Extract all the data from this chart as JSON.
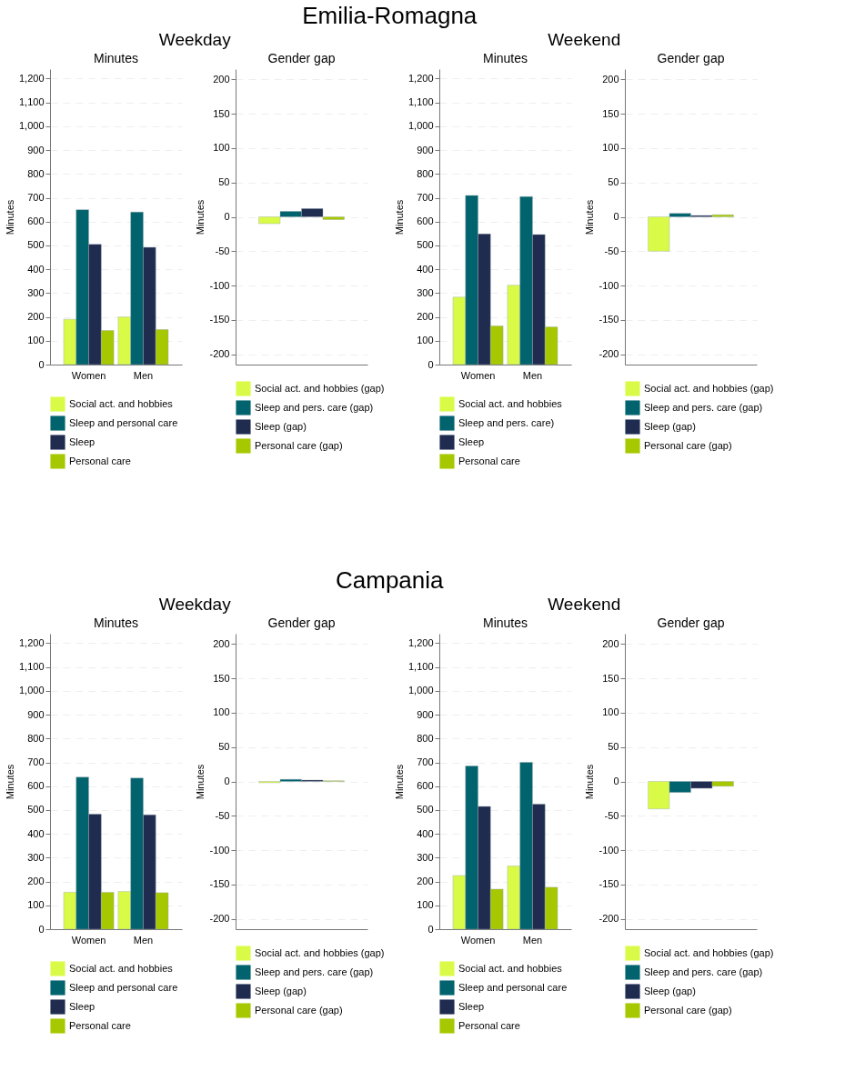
{
  "chart_data": [
    {
      "type": "bar",
      "title": "Minutes",
      "ylabel": "Minutes",
      "annotations": [
        "Emilia-Romagna",
        "Weekday"
      ],
      "categories": [
        "Women",
        "Men"
      ],
      "ylim": [
        0,
        1240
      ],
      "yticks": [
        0,
        100,
        200,
        300,
        400,
        500,
        600,
        700,
        800,
        900,
        {
          "value": 1000,
          "label": "1,000"
        },
        {
          "value": 1100,
          "label": "1,100"
        },
        {
          "value": 1200,
          "label": "1,200"
        }
      ],
      "grid": "y",
      "legend": "bottom",
      "series": [
        {
          "name": "Social act. and hobbies",
          "color": "#d9fb48",
          "values": [
            190,
            200
          ]
        },
        {
          "name": "Sleep and personal care",
          "color": "#00636d",
          "values": [
            650,
            640
          ]
        },
        {
          "name": "Sleep",
          "color": "#1f2c50",
          "values": [
            505,
            492
          ]
        },
        {
          "name": "Personal care",
          "color": "#a6c800",
          "values": [
            143,
            147
          ]
        }
      ]
    },
    {
      "type": "bar",
      "title": "Gender gap",
      "ylabel": "Minutes",
      "categories": [
        null
      ],
      "ylim": [
        -215,
        215
      ],
      "yticks": [
        -200,
        -150,
        -100,
        -50,
        0,
        50,
        100,
        150,
        200
      ],
      "grid": "y",
      "legend": "bottom",
      "tick_labels": "y",
      "series": [
        {
          "name": "Social act. and hobbies (gap)",
          "color": "#d9fb48",
          "values": [
            -10
          ]
        },
        {
          "name": "Sleep and pers. care (gap)",
          "color": "#00636d",
          "values": [
            8
          ]
        },
        {
          "name": "Sleep (gap)",
          "color": "#1f2c50",
          "values": [
            12
          ]
        },
        {
          "name": "Personal care (gap)",
          "color": "#a6c800",
          "values": [
            -4
          ]
        }
      ]
    },
    {
      "type": "bar",
      "title": "Minutes",
      "ylabel": "Minutes",
      "annotations": [
        "Weekend"
      ],
      "categories": [
        "Women",
        "Men"
      ],
      "ylim": [
        0,
        1240
      ],
      "yticks": [
        0,
        100,
        200,
        300,
        400,
        500,
        600,
        700,
        800,
        900,
        {
          "value": 1000,
          "label": "1,000"
        },
        {
          "value": 1100,
          "label": "1,100"
        },
        {
          "value": 1200,
          "label": "1,200"
        }
      ],
      "grid": "y",
      "legend": "bottom",
      "series": [
        {
          "name": "Social act. and hobbies",
          "color": "#d9fb48",
          "values": [
            283,
            333
          ]
        },
        {
          "name": "Sleep and pers. care)",
          "color": "#00636d",
          "values": [
            710,
            705
          ]
        },
        {
          "name": "Sleep",
          "color": "#1f2c50",
          "values": [
            548,
            546
          ]
        },
        {
          "name": "Personal care",
          "color": "#a6c800",
          "values": [
            162,
            158
          ]
        }
      ]
    },
    {
      "type": "bar",
      "title": "Gender gap",
      "ylabel": "Minutes",
      "categories": [
        null
      ],
      "ylim": [
        -215,
        215
      ],
      "yticks": [
        -200,
        -150,
        -100,
        -50,
        0,
        50,
        100,
        150,
        200
      ],
      "grid": "y",
      "legend": "bottom",
      "tick_labels": "y",
      "series": [
        {
          "name": "Social act. and hobbies (gap)",
          "color": "#d9fb48",
          "values": [
            -50
          ]
        },
        {
          "name": "Sleep and pers. care (gap)",
          "color": "#00636d",
          "values": [
            5
          ]
        },
        {
          "name": "Sleep (gap)",
          "color": "#1f2c50",
          "values": [
            2
          ]
        },
        {
          "name": "Personal care (gap)",
          "color": "#a6c800",
          "values": [
            3
          ]
        }
      ]
    },
    {
      "type": "bar",
      "title": "Minutes",
      "ylabel": "Minutes",
      "annotations": [
        "Campania",
        "Weekday"
      ],
      "categories": [
        "Women",
        "Men"
      ],
      "ylim": [
        0,
        1240
      ],
      "yticks": [
        0,
        100,
        200,
        300,
        400,
        500,
        600,
        700,
        800,
        900,
        {
          "value": 1000,
          "label": "1,000"
        },
        {
          "value": 1100,
          "label": "1,100"
        },
        {
          "value": 1200,
          "label": "1,200"
        }
      ],
      "grid": "y",
      "legend": "bottom",
      "series": [
        {
          "name": "Social act. and hobbies",
          "color": "#d9fb48",
          "values": [
            155,
            158
          ]
        },
        {
          "name": "Sleep and personal care",
          "color": "#00636d",
          "values": [
            638,
            634
          ]
        },
        {
          "name": "Sleep",
          "color": "#1f2c50",
          "values": [
            483,
            480
          ]
        },
        {
          "name": "Personal care",
          "color": "#a6c800",
          "values": [
            155,
            153
          ]
        }
      ]
    },
    {
      "type": "bar",
      "title": "Gender gap",
      "ylabel": "Minutes",
      "categories": [
        null
      ],
      "ylim": [
        -215,
        215
      ],
      "yticks": [
        -200,
        -150,
        -100,
        -50,
        0,
        50,
        100,
        150,
        200
      ],
      "grid": "y",
      "legend": "bottom",
      "tick_labels": "y",
      "series": [
        {
          "name": "Social act. and hobbies (gap)",
          "color": "#d9fb48",
          "values": [
            -2
          ]
        },
        {
          "name": "Sleep and pers. care (gap)",
          "color": "#00636d",
          "values": [
            3
          ]
        },
        {
          "name": "Sleep (gap)",
          "color": "#1f2c50",
          "values": [
            2
          ]
        },
        {
          "name": "Personal care (gap)",
          "color": "#a6c800",
          "values": [
            1
          ]
        }
      ]
    },
    {
      "type": "bar",
      "title": "Minutes",
      "ylabel": "Minutes",
      "annotations": [
        "Weekend"
      ],
      "categories": [
        "Women",
        "Men"
      ],
      "ylim": [
        0,
        1240
      ],
      "yticks": [
        0,
        100,
        200,
        300,
        400,
        500,
        600,
        700,
        800,
        900,
        {
          "value": 1000,
          "label": "1,000"
        },
        {
          "value": 1100,
          "label": "1,100"
        },
        {
          "value": 1200,
          "label": "1,200"
        }
      ],
      "grid": "y",
      "legend": "bottom",
      "series": [
        {
          "name": "Social act. and hobbies",
          "color": "#d9fb48",
          "values": [
            225,
            265
          ]
        },
        {
          "name": "Sleep and personal care",
          "color": "#00636d",
          "values": [
            685,
            700
          ]
        },
        {
          "name": "Sleep",
          "color": "#1f2c50",
          "values": [
            515,
            525
          ]
        },
        {
          "name": "Personal care",
          "color": "#a6c800",
          "values": [
            168,
            176
          ]
        }
      ]
    },
    {
      "type": "bar",
      "title": "Gender gap",
      "ylabel": "Minutes",
      "categories": [
        null
      ],
      "ylim": [
        -215,
        215
      ],
      "yticks": [
        -200,
        -150,
        -100,
        -50,
        0,
        50,
        100,
        150,
        200
      ],
      "grid": "y",
      "legend": "bottom",
      "tick_labels": "y",
      "series": [
        {
          "name": "Social act. and hobbies (gap)",
          "color": "#d9fb48",
          "values": [
            -40
          ]
        },
        {
          "name": "Sleep and pers. care (gap)",
          "color": "#00636d",
          "values": [
            -16
          ]
        },
        {
          "name": "Sleep (gap)",
          "color": "#1f2c50",
          "values": [
            -10
          ]
        },
        {
          "name": "Personal care (gap)",
          "color": "#a6c800",
          "values": [
            -7
          ]
        }
      ]
    }
  ]
}
